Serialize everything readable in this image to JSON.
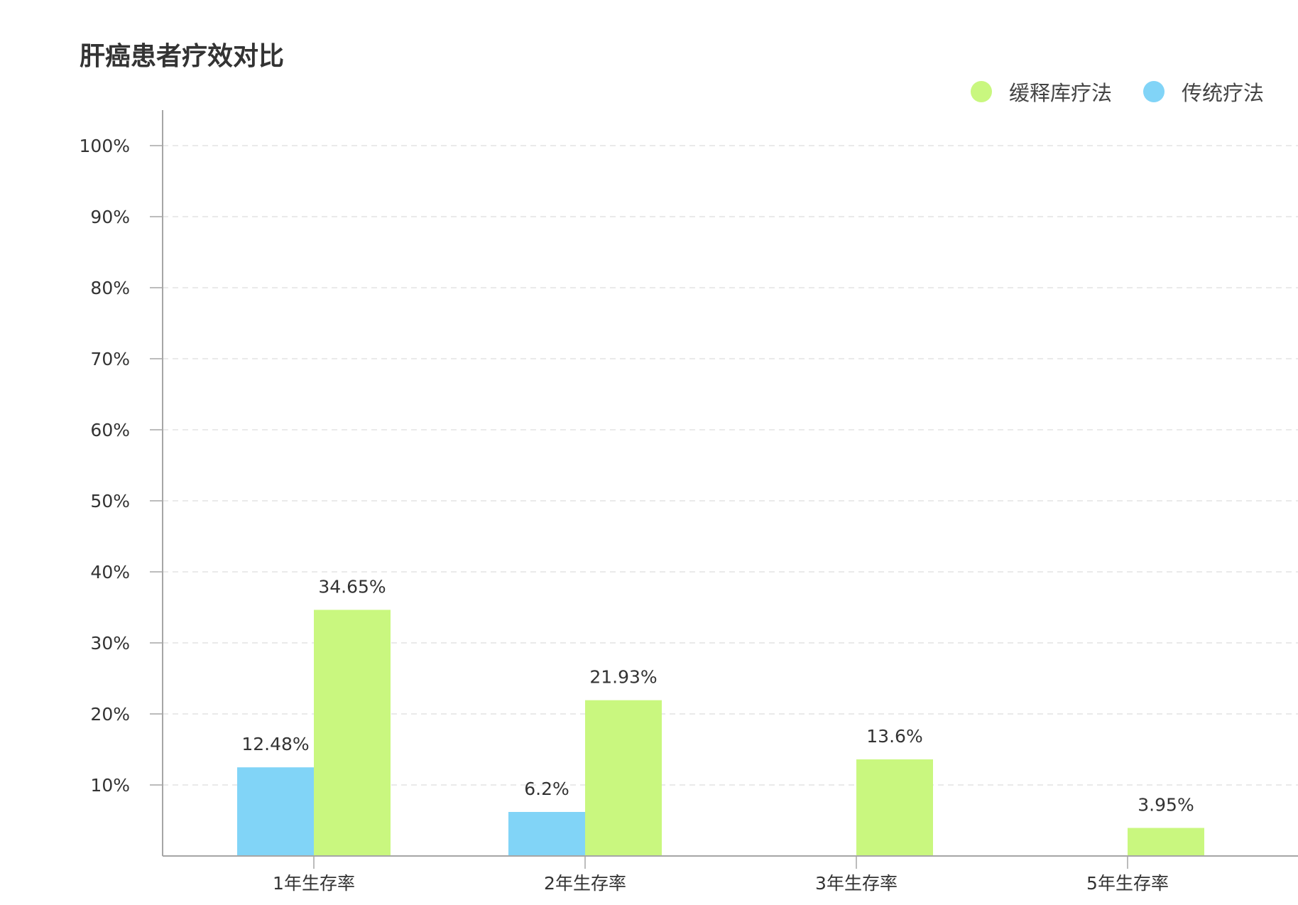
{
  "chart_data": {
    "type": "bar",
    "title": "肝癌患者疗效对比",
    "categories": [
      "1年生存率",
      "2年生存率",
      "3年生存率",
      "5年生存率"
    ],
    "series": [
      {
        "name": "传统疗法",
        "color": "#81D4F7",
        "values": [
          12.48,
          6.2,
          null,
          null
        ],
        "labels": [
          "12.48%",
          "6.2%",
          "",
          ""
        ]
      },
      {
        "name": "缓释库疗法",
        "color": "#C9F77F",
        "values": [
          34.65,
          21.93,
          13.6,
          3.95
        ],
        "labels": [
          "34.65%",
          "21.93%",
          "13.6%",
          "3.95%"
        ]
      }
    ],
    "legend_order": [
      1,
      0
    ],
    "legend_position": "top-right",
    "xlabel": "",
    "ylabel": "",
    "ylim": [
      0,
      100
    ],
    "yticks": [
      10,
      20,
      30,
      40,
      50,
      60,
      70,
      80,
      90,
      100
    ],
    "ytick_labels": [
      "10%",
      "20%",
      "30%",
      "40%",
      "50%",
      "60%",
      "70%",
      "80%",
      "90%",
      "100%"
    ],
    "grid": true,
    "grid_color": "#e3e3e3",
    "axis_color": "#a6a6a6"
  }
}
